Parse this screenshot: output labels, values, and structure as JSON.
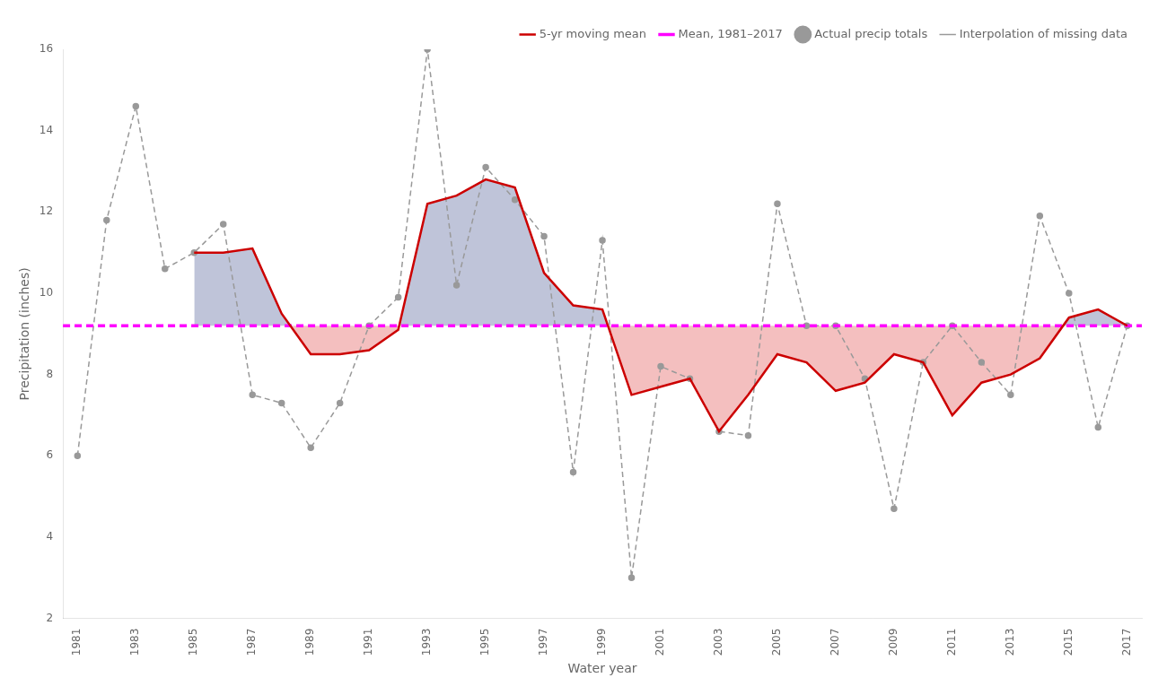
{
  "chart_data": {
    "type": "line",
    "xlabel": "Water year",
    "ylabel": "Precipitation (inches)",
    "x": [
      1981,
      1982,
      1983,
      1984,
      1985,
      1986,
      1987,
      1988,
      1989,
      1990,
      1991,
      1992,
      1993,
      1994,
      1995,
      1996,
      1997,
      1998,
      1999,
      2000,
      2001,
      2002,
      2003,
      2004,
      2005,
      2006,
      2007,
      2008,
      2009,
      2010,
      2011,
      2012,
      2013,
      2014,
      2015,
      2016,
      2017
    ],
    "series": [
      {
        "name": "Actual precip totals",
        "color": "#999999",
        "marker": "o",
        "line_style": "none",
        "values": [
          6.0,
          11.8,
          14.6,
          10.6,
          11.0,
          11.7,
          7.5,
          7.3,
          6.2,
          7.3,
          9.2,
          9.9,
          16.0,
          10.2,
          13.1,
          12.3,
          11.4,
          5.6,
          11.3,
          3.0,
          8.2,
          7.9,
          6.6,
          6.5,
          12.2,
          9.2,
          9.2,
          7.9,
          4.7,
          8.3,
          9.2,
          8.3,
          7.5,
          11.9,
          10.0,
          6.7,
          9.2
        ]
      },
      {
        "name": "Interpolation of missing data",
        "color": "#999999",
        "line_style": "dashed",
        "values": [
          6.0,
          11.8,
          14.6,
          10.6,
          11.0,
          11.7,
          7.5,
          7.3,
          6.2,
          7.3,
          9.2,
          9.9,
          16.0,
          10.2,
          13.1,
          12.3,
          11.4,
          5.6,
          11.3,
          3.0,
          8.2,
          7.9,
          6.6,
          6.5,
          12.2,
          9.2,
          9.2,
          7.9,
          4.7,
          8.3,
          9.2,
          8.3,
          7.5,
          11.9,
          10.0,
          6.7,
          9.2
        ]
      },
      {
        "name": "5-yr moving mean",
        "color": "#cc0000",
        "line_style": "solid",
        "fill": {
          "above": "#aab0cc",
          "below": "#f0aaaa"
        },
        "values": [
          null,
          null,
          null,
          null,
          11.0,
          11.0,
          11.1,
          9.5,
          8.5,
          8.5,
          8.6,
          9.1,
          12.2,
          12.4,
          12.8,
          12.6,
          10.5,
          9.7,
          9.6,
          7.5,
          7.7,
          7.9,
          6.6,
          7.5,
          8.5,
          8.3,
          7.6,
          7.8,
          8.5,
          8.3,
          7.0,
          7.8,
          8.0,
          8.4,
          9.4,
          9.6,
          9.2
        ]
      },
      {
        "name": "Mean, 1981–2017",
        "type": "hline",
        "color": "#ff00ff",
        "line_style": "dashed",
        "y": 9.2
      }
    ],
    "xlim": [
      1980.5,
      2017.5
    ],
    "xticks": [
      1981,
      1983,
      1985,
      1987,
      1989,
      1991,
      1993,
      1995,
      1997,
      1999,
      2001,
      2003,
      2005,
      2007,
      2009,
      2011,
      2013,
      2015,
      2017
    ],
    "ylim": [
      2,
      16
    ],
    "yticks": [
      2,
      4,
      6,
      8,
      10,
      12,
      14,
      16
    ],
    "grid": false,
    "legend": "upper right"
  }
}
